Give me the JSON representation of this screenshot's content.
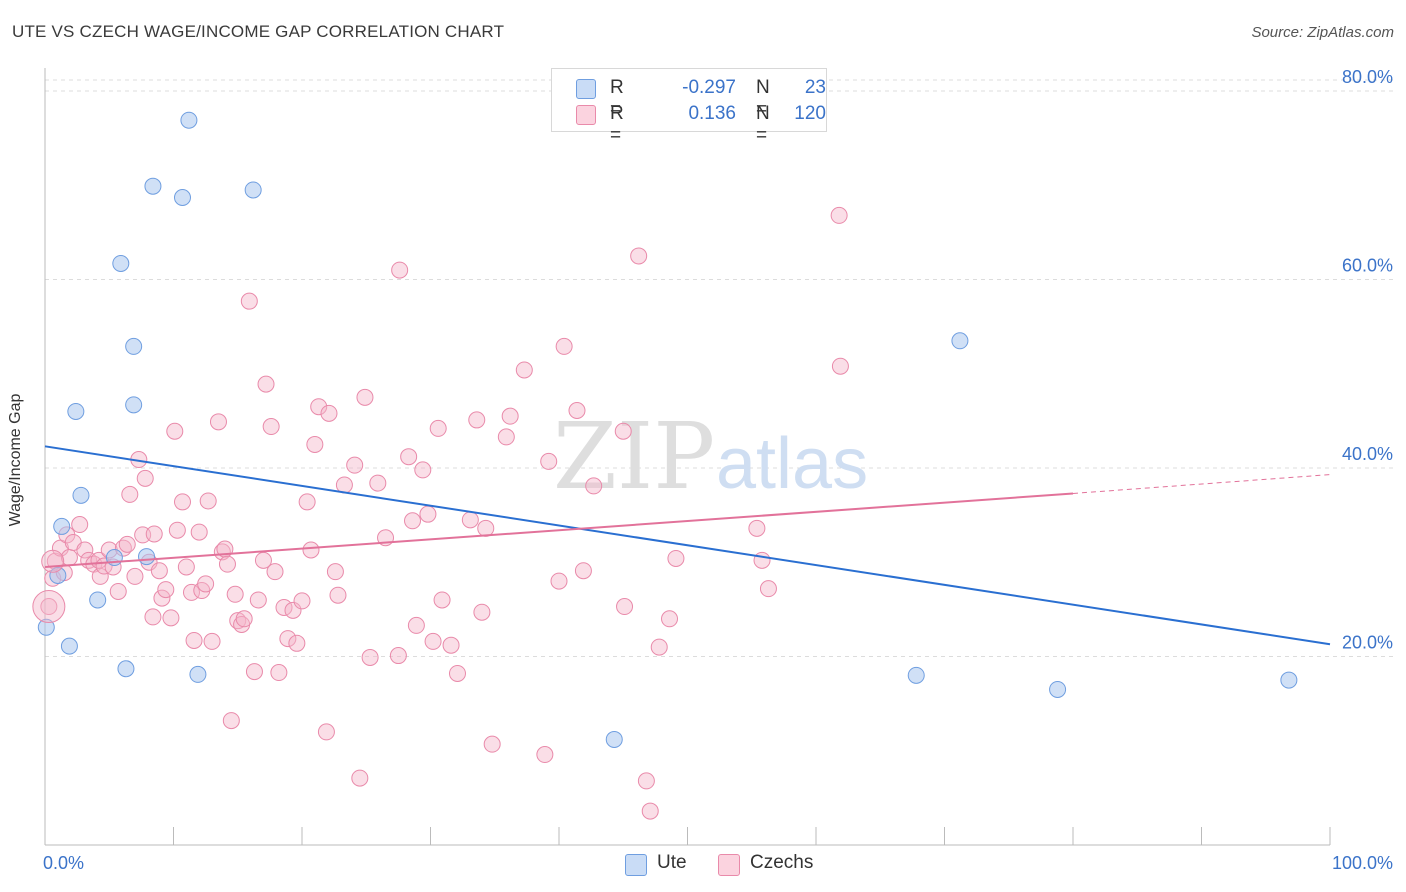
{
  "header": {
    "title": "UTE VS CZECH WAGE/INCOME GAP CORRELATION CHART",
    "source": "Source: ZipAtlas.com"
  },
  "legend": {
    "rows": [
      {
        "r_label": "R =",
        "r_value": "-0.297",
        "n_label": "N =",
        "n_value": "23",
        "color": "#a9c6ef"
      },
      {
        "r_label": "R =",
        "r_value": "0.136",
        "n_label": "N =",
        "n_value": "120",
        "color": "#f5b6c9"
      }
    ]
  },
  "bottom_legend": [
    {
      "label": "Ute",
      "color": "#a9c6ef"
    },
    {
      "label": "Czechs",
      "color": "#f5b6c9"
    }
  ],
  "watermark": {
    "zip": "ZIP",
    "atlas": "atlas"
  },
  "colors": {
    "ute_fill": "#a9c6ef",
    "ute_stroke": "#6f9ee0",
    "ute_line": "#2a6fd1",
    "czech_fill": "#f5b6c9",
    "czech_stroke": "#e98aaa",
    "czech_line": "#e2729a",
    "tick_label": "#3b73c9",
    "grid": "#dcdcdc"
  },
  "chart_data": {
    "type": "scatter",
    "title": "UTE VS CZECH WAGE/INCOME GAP CORRELATION CHART",
    "xlabel": "",
    "ylabel": "Wage/Income Gap",
    "xlim": [
      0,
      100
    ],
    "ylim": [
      0,
      80
    ],
    "x_tick_labels": [
      "0.0%",
      "100.0%"
    ],
    "y_tick_labels": [
      "20.0%",
      "40.0%",
      "60.0%",
      "80.0%"
    ],
    "y_ticks": [
      20,
      40,
      60,
      80
    ],
    "grid": true,
    "legend_placement": "top-center",
    "series": [
      {
        "name": "Ute",
        "points": [
          [
            0.1,
            23.1
          ],
          [
            1.0,
            28.6
          ],
          [
            1.3,
            33.8
          ],
          [
            1.9,
            21.1
          ],
          [
            2.4,
            46.0
          ],
          [
            2.8,
            37.1
          ],
          [
            4.1,
            26.0
          ],
          [
            5.4,
            30.5
          ],
          [
            5.9,
            61.7
          ],
          [
            6.3,
            18.7
          ],
          [
            6.9,
            52.9
          ],
          [
            6.9,
            46.7
          ],
          [
            7.9,
            30.6
          ],
          [
            8.4,
            69.9
          ],
          [
            10.7,
            68.7
          ],
          [
            11.2,
            76.9
          ],
          [
            11.9,
            18.1
          ],
          [
            16.2,
            69.5
          ],
          [
            44.3,
            11.2
          ],
          [
            71.2,
            53.5
          ],
          [
            67.8,
            18.0
          ],
          [
            78.8,
            16.5
          ],
          [
            96.8,
            17.5
          ]
        ],
        "trend": {
          "x": [
            0,
            100
          ],
          "y": [
            42.3,
            21.3
          ]
        }
      },
      {
        "name": "Czechs",
        "points": [
          [
            0.3,
            25.3
          ],
          [
            0.6,
            28.3
          ],
          [
            0.8,
            30.1
          ],
          [
            1.2,
            31.5
          ],
          [
            1.5,
            28.9
          ],
          [
            1.7,
            32.9
          ],
          [
            1.9,
            30.5
          ],
          [
            2.2,
            32.1
          ],
          [
            2.7,
            34.0
          ],
          [
            3.1,
            31.3
          ],
          [
            3.4,
            30.2
          ],
          [
            3.8,
            29.8
          ],
          [
            4.2,
            30.2
          ],
          [
            4.3,
            28.5
          ],
          [
            4.6,
            29.6
          ],
          [
            5.0,
            31.3
          ],
          [
            5.3,
            29.5
          ],
          [
            5.7,
            26.9
          ],
          [
            6.1,
            31.5
          ],
          [
            6.4,
            31.9
          ],
          [
            6.6,
            37.2
          ],
          [
            7.0,
            28.5
          ],
          [
            7.3,
            40.9
          ],
          [
            7.6,
            32.9
          ],
          [
            7.8,
            38.9
          ],
          [
            8.1,
            30.0
          ],
          [
            8.4,
            24.2
          ],
          [
            8.5,
            33.0
          ],
          [
            8.9,
            29.1
          ],
          [
            9.1,
            26.2
          ],
          [
            9.4,
            27.1
          ],
          [
            9.8,
            24.1
          ],
          [
            10.1,
            43.9
          ],
          [
            10.3,
            33.4
          ],
          [
            10.7,
            36.4
          ],
          [
            11.0,
            29.5
          ],
          [
            11.4,
            26.8
          ],
          [
            11.6,
            21.7
          ],
          [
            12.0,
            33.2
          ],
          [
            12.2,
            27.0
          ],
          [
            12.5,
            27.7
          ],
          [
            12.7,
            36.5
          ],
          [
            13.0,
            21.6
          ],
          [
            13.5,
            44.9
          ],
          [
            13.8,
            31.1
          ],
          [
            14.0,
            31.4
          ],
          [
            14.2,
            29.8
          ],
          [
            14.5,
            13.2
          ],
          [
            14.8,
            26.6
          ],
          [
            15.0,
            23.8
          ],
          [
            15.3,
            23.4
          ],
          [
            15.5,
            24.0
          ],
          [
            15.9,
            57.7
          ],
          [
            16.3,
            18.4
          ],
          [
            16.6,
            26.0
          ],
          [
            17.0,
            30.2
          ],
          [
            17.2,
            48.9
          ],
          [
            17.6,
            44.4
          ],
          [
            17.9,
            29.0
          ],
          [
            18.2,
            18.3
          ],
          [
            18.6,
            25.2
          ],
          [
            18.9,
            21.9
          ],
          [
            19.3,
            24.9
          ],
          [
            19.6,
            21.4
          ],
          [
            20.0,
            25.9
          ],
          [
            20.4,
            36.4
          ],
          [
            20.7,
            31.3
          ],
          [
            21.0,
            42.5
          ],
          [
            21.3,
            46.5
          ],
          [
            21.9,
            12.0
          ],
          [
            22.1,
            45.8
          ],
          [
            22.6,
            29.0
          ],
          [
            22.8,
            26.5
          ],
          [
            23.3,
            38.2
          ],
          [
            24.1,
            40.3
          ],
          [
            24.9,
            47.5
          ],
          [
            24.5,
            7.1
          ],
          [
            25.3,
            19.9
          ],
          [
            25.9,
            38.4
          ],
          [
            26.5,
            32.6
          ],
          [
            27.6,
            61.0
          ],
          [
            27.5,
            20.1
          ],
          [
            28.3,
            41.2
          ],
          [
            28.6,
            34.4
          ],
          [
            28.9,
            23.3
          ],
          [
            29.4,
            39.8
          ],
          [
            29.8,
            35.1
          ],
          [
            30.2,
            21.6
          ],
          [
            30.6,
            44.2
          ],
          [
            30.9,
            26.0
          ],
          [
            31.6,
            21.2
          ],
          [
            32.1,
            18.2
          ],
          [
            33.1,
            34.5
          ],
          [
            33.6,
            45.1
          ],
          [
            34.0,
            24.7
          ],
          [
            34.3,
            33.6
          ],
          [
            34.8,
            10.7
          ],
          [
            35.9,
            43.3
          ],
          [
            36.2,
            45.5
          ],
          [
            37.3,
            50.4
          ],
          [
            38.9,
            9.6
          ],
          [
            39.2,
            40.7
          ],
          [
            40.0,
            28.0
          ],
          [
            40.4,
            52.9
          ],
          [
            41.4,
            46.1
          ],
          [
            41.9,
            29.1
          ],
          [
            42.7,
            38.1
          ],
          [
            45.0,
            43.9
          ],
          [
            45.1,
            25.3
          ],
          [
            46.2,
            62.5
          ],
          [
            46.8,
            6.8
          ],
          [
            47.1,
            3.6
          ],
          [
            47.8,
            21.0
          ],
          [
            48.6,
            24.0
          ],
          [
            49.1,
            30.4
          ],
          [
            55.4,
            33.6
          ],
          [
            55.8,
            30.2
          ],
          [
            56.3,
            27.2
          ],
          [
            61.9,
            50.8
          ],
          [
            61.8,
            66.8
          ]
        ],
        "trend": {
          "x": [
            0,
            80,
            100
          ],
          "y": [
            29.5,
            37.3,
            39.3
          ],
          "dashed_from_x": 80
        }
      }
    ]
  }
}
